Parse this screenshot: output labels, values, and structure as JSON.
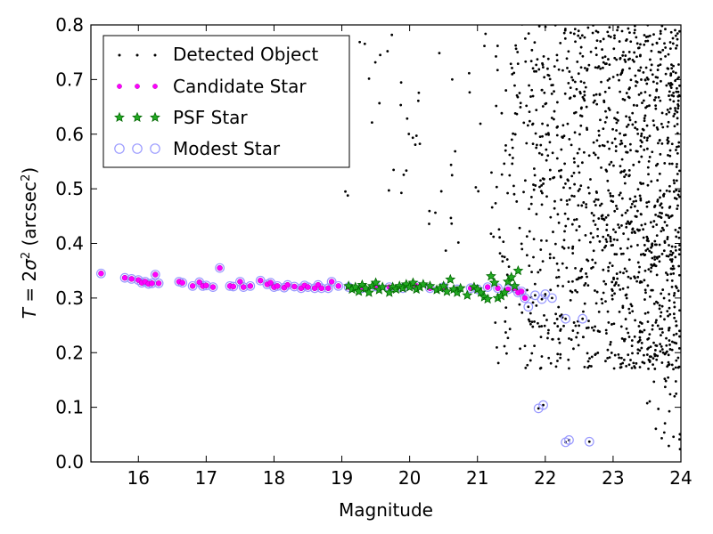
{
  "chart_data": {
    "type": "scatter",
    "xlabel": "Magnitude",
    "ylabel": "T = 2σ² (arcsec²)",
    "ylabel_parts": {
      "t": "T",
      "eq": " = 2",
      "sigma": "σ",
      "sup2": "2",
      "open": " (arcsec",
      "sup2b": "2",
      "close": ")"
    },
    "xlim": [
      15.3,
      24
    ],
    "ylim": [
      0.0,
      0.8
    ],
    "xticks": [
      "16",
      "17",
      "18",
      "19",
      "20",
      "21",
      "22",
      "23",
      "24"
    ],
    "yticks": [
      "0.0",
      "0.1",
      "0.2",
      "0.3",
      "0.4",
      "0.5",
      "0.6",
      "0.7",
      "0.8"
    ],
    "grid": false,
    "legend_position": "top-left",
    "colors": {
      "detected": "#000000",
      "candidate": "#ff00ff",
      "psf_fill": "#22aa22",
      "psf_edge": "#006600",
      "modest": "#9999ff"
    },
    "series": [
      {
        "name": "Detected Object",
        "marker": "dot"
      },
      {
        "name": "Candidate Star",
        "marker": "small-circle"
      },
      {
        "name": "PSF Star",
        "marker": "star"
      },
      {
        "name": "Modest Star",
        "marker": "open-circle"
      }
    ],
    "stellar_locus": [
      [
        15.45,
        0.345
      ],
      [
        15.8,
        0.337
      ],
      [
        15.9,
        0.335
      ],
      [
        16.0,
        0.333
      ],
      [
        16.05,
        0.328
      ],
      [
        16.1,
        0.33
      ],
      [
        16.15,
        0.326
      ],
      [
        16.2,
        0.327
      ],
      [
        16.25,
        0.343
      ],
      [
        16.3,
        0.327
      ],
      [
        16.6,
        0.33
      ],
      [
        16.65,
        0.328
      ],
      [
        16.8,
        0.322
      ],
      [
        16.9,
        0.329
      ],
      [
        16.95,
        0.322
      ],
      [
        17.0,
        0.323
      ],
      [
        17.1,
        0.32
      ],
      [
        17.2,
        0.355
      ],
      [
        17.35,
        0.322
      ],
      [
        17.4,
        0.321
      ],
      [
        17.5,
        0.33
      ],
      [
        17.55,
        0.32
      ],
      [
        17.65,
        0.322
      ],
      [
        17.8,
        0.332
      ],
      [
        17.9,
        0.325
      ],
      [
        17.95,
        0.328
      ],
      [
        18.0,
        0.32
      ],
      [
        18.05,
        0.322
      ],
      [
        18.15,
        0.319
      ],
      [
        18.2,
        0.324
      ],
      [
        18.3,
        0.321
      ],
      [
        18.4,
        0.318
      ],
      [
        18.45,
        0.323
      ],
      [
        18.5,
        0.32
      ],
      [
        18.6,
        0.318
      ],
      [
        18.65,
        0.324
      ],
      [
        18.7,
        0.318
      ],
      [
        18.8,
        0.318
      ],
      [
        18.85,
        0.33
      ],
      [
        18.95,
        0.322
      ],
      [
        19.1,
        0.32
      ],
      [
        19.3,
        0.318
      ],
      [
        19.5,
        0.321
      ],
      [
        19.7,
        0.32
      ],
      [
        19.9,
        0.318
      ],
      [
        20.1,
        0.322
      ],
      [
        20.3,
        0.318
      ],
      [
        20.5,
        0.32
      ],
      [
        20.7,
        0.316
      ],
      [
        20.9,
        0.318
      ],
      [
        21.0,
        0.316
      ],
      [
        21.15,
        0.32
      ],
      [
        21.3,
        0.318
      ],
      [
        21.45,
        0.316
      ],
      [
        21.55,
        0.318
      ],
      [
        21.6,
        0.31
      ],
      [
        21.65,
        0.312
      ],
      [
        21.7,
        0.3
      ],
      [
        21.75,
        0.284
      ],
      [
        21.85,
        0.305
      ],
      [
        21.95,
        0.298
      ],
      [
        22.0,
        0.307
      ],
      [
        22.1,
        0.3
      ],
      [
        22.3,
        0.262
      ],
      [
        22.55,
        0.262
      ],
      [
        21.9,
        0.098
      ],
      [
        21.97,
        0.104
      ],
      [
        22.3,
        0.036
      ],
      [
        22.35,
        0.04
      ],
      [
        22.65,
        0.037
      ]
    ],
    "psf_stars": [
      [
        19.1,
        0.322
      ],
      [
        19.15,
        0.316
      ],
      [
        19.2,
        0.32
      ],
      [
        19.25,
        0.312
      ],
      [
        19.3,
        0.324
      ],
      [
        19.35,
        0.318
      ],
      [
        19.4,
        0.31
      ],
      [
        19.45,
        0.322
      ],
      [
        19.5,
        0.328
      ],
      [
        19.55,
        0.315
      ],
      [
        19.6,
        0.32
      ],
      [
        19.7,
        0.31
      ],
      [
        19.75,
        0.32
      ],
      [
        19.8,
        0.316
      ],
      [
        19.85,
        0.322
      ],
      [
        19.9,
        0.318
      ],
      [
        19.95,
        0.325
      ],
      [
        20.0,
        0.32
      ],
      [
        20.05,
        0.328
      ],
      [
        20.1,
        0.316
      ],
      [
        20.15,
        0.32
      ],
      [
        20.2,
        0.325
      ],
      [
        20.3,
        0.322
      ],
      [
        20.4,
        0.315
      ],
      [
        20.45,
        0.318
      ],
      [
        20.5,
        0.322
      ],
      [
        20.55,
        0.312
      ],
      [
        20.6,
        0.334
      ],
      [
        20.65,
        0.316
      ],
      [
        20.7,
        0.31
      ],
      [
        20.75,
        0.318
      ],
      [
        20.85,
        0.305
      ],
      [
        20.95,
        0.32
      ],
      [
        21.0,
        0.316
      ],
      [
        21.05,
        0.31
      ],
      [
        21.1,
        0.302
      ],
      [
        21.15,
        0.298
      ],
      [
        21.2,
        0.34
      ],
      [
        21.25,
        0.328
      ],
      [
        21.3,
        0.3
      ],
      [
        21.35,
        0.304
      ],
      [
        21.4,
        0.31
      ],
      [
        21.45,
        0.33
      ],
      [
        21.5,
        0.338
      ],
      [
        21.55,
        0.322
      ],
      [
        21.6,
        0.35
      ]
    ]
  }
}
